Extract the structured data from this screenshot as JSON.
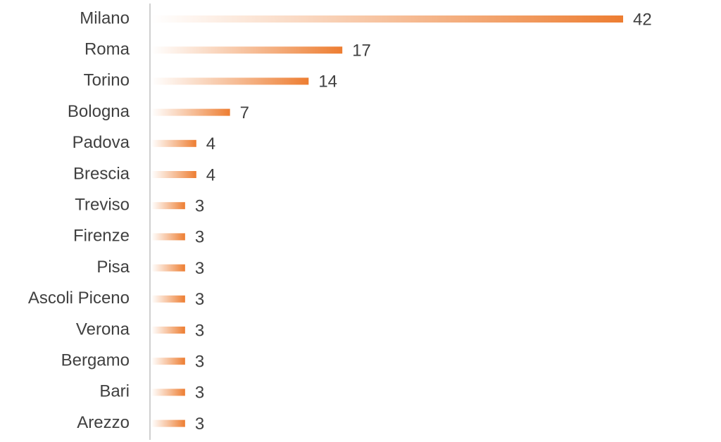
{
  "chart_data": {
    "type": "bar",
    "orientation": "horizontal",
    "categories": [
      "Milano",
      "Roma",
      "Torino",
      "Bologna",
      "Padova",
      "Brescia",
      "Treviso",
      "Firenze",
      "Pisa",
      "Ascoli Piceno",
      "Verona",
      "Bergamo",
      "Bari",
      "Arezzo"
    ],
    "values": [
      42,
      17,
      14,
      7,
      4,
      4,
      3,
      3,
      3,
      3,
      3,
      3,
      3,
      3
    ],
    "color": "#ed7d31"
  }
}
